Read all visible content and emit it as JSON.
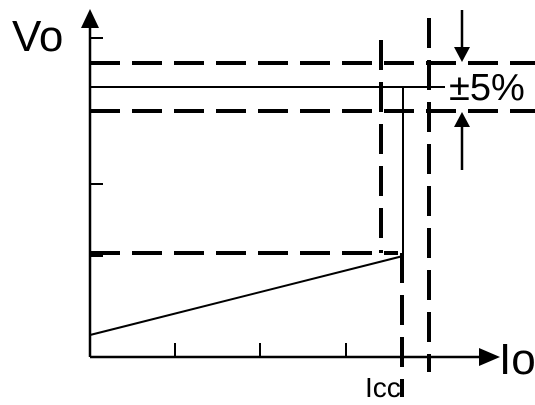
{
  "diagram": {
    "y_axis_label": "Vo",
    "x_axis_label": "Io",
    "current_limit_label": "Icc",
    "tolerance_label": "±5%",
    "colors": {
      "background": "#ffffff",
      "stroke": "#000000"
    }
  }
}
